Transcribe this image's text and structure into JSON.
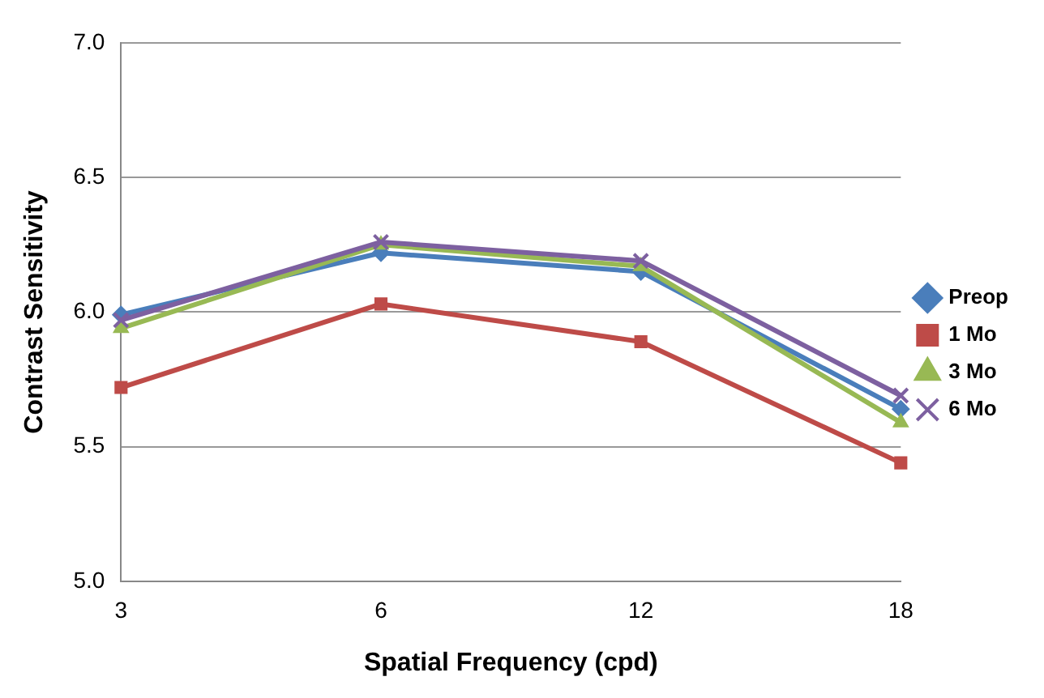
{
  "chart_data": {
    "type": "line",
    "xlabel": "Spatial Frequency (cpd)",
    "ylabel": "Contrast Sensitivity",
    "categories": [
      "3",
      "6",
      "12",
      "18"
    ],
    "series": [
      {
        "name": "Preop",
        "color": "#4a7ebb",
        "marker": "diamond",
        "values": [
          5.99,
          6.22,
          6.15,
          5.64
        ]
      },
      {
        "name": "1 Mo",
        "color": "#be4b48",
        "marker": "square",
        "values": [
          5.72,
          6.03,
          5.89,
          5.44
        ]
      },
      {
        "name": "3 Mo",
        "color": "#98b954",
        "marker": "triangle",
        "values": [
          5.94,
          6.25,
          6.17,
          5.59
        ]
      },
      {
        "name": "6 Mo",
        "color": "#7d60a0",
        "marker": "cross",
        "values": [
          5.97,
          6.26,
          6.19,
          5.69
        ]
      }
    ],
    "ylim": [
      5,
      7
    ],
    "yticks": [
      {
        "value": 5,
        "label": "5.0"
      },
      {
        "value": 5.5,
        "label": "5.5"
      },
      {
        "value": 6,
        "label": "6.0"
      },
      {
        "value": 6.5,
        "label": "6.5"
      },
      {
        "value": 7,
        "label": "7.0"
      }
    ],
    "grid": "y",
    "legend": "right",
    "line_style": "solid"
  }
}
